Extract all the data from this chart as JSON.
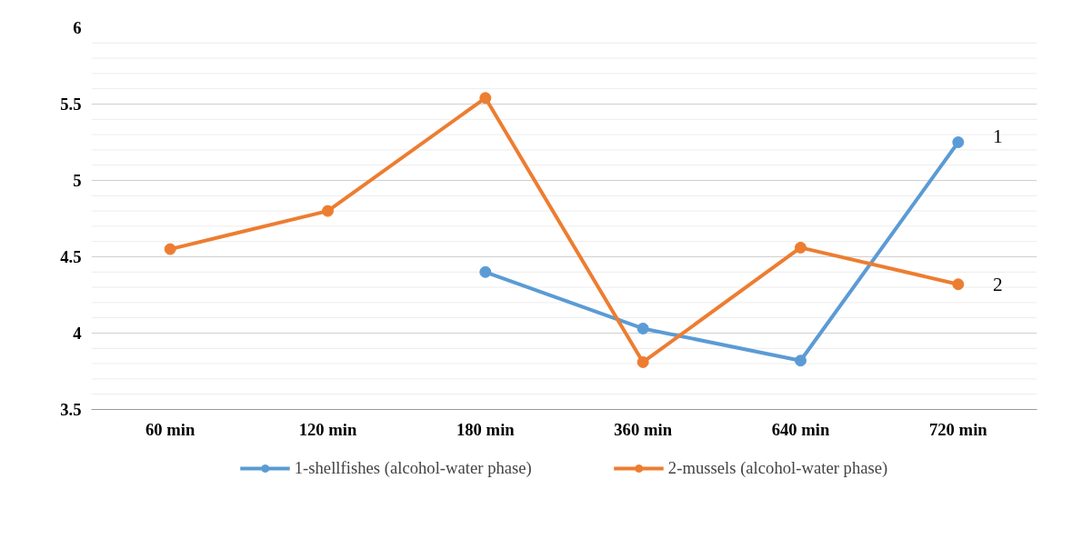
{
  "chart_data": {
    "type": "line",
    "categories": [
      "60 min",
      "120 min",
      "180 min",
      "360 min",
      "640 min",
      "720 min"
    ],
    "series": [
      {
        "name": "1-shellfishes (alcohol-water phase)",
        "color": "#5b9bd5",
        "values": [
          null,
          null,
          4.4,
          4.03,
          3.82,
          5.25
        ]
      },
      {
        "name": "2-mussels (alcohol-water phase)",
        "color": "#ed7d31",
        "values": [
          4.55,
          4.8,
          5.54,
          3.81,
          4.56,
          4.32
        ]
      }
    ],
    "ylim": [
      3.5,
      6
    ],
    "yticks": [
      3.5,
      {
        "value": 3.6,
        "label": null
      },
      {
        "value": 3.7,
        "label": null
      },
      {
        "value": 3.8,
        "label": null
      },
      {
        "value": 3.9,
        "label": null
      },
      4,
      {
        "value": 4.1,
        "label": null
      },
      {
        "value": 4.2,
        "label": null
      },
      {
        "value": 4.3,
        "label": null
      },
      {
        "value": 4.4,
        "label": null
      },
      4.5,
      {
        "value": 4.6,
        "label": null
      },
      {
        "value": 4.7,
        "label": null
      },
      {
        "value": 4.8,
        "label": null
      },
      {
        "value": 4.9,
        "label": null
      },
      5,
      {
        "value": 5.1,
        "label": null
      },
      {
        "value": 5.2,
        "label": null
      },
      {
        "value": 5.3,
        "label": null
      },
      {
        "value": 5.4,
        "label": null
      },
      5.5,
      {
        "value": 5.6,
        "label": null
      },
      {
        "value": 5.7,
        "label": null
      },
      {
        "value": 5.8,
        "label": null
      },
      {
        "value": 5.9,
        "label": null
      },
      6
    ],
    "annotations": [
      {
        "text": "1",
        "x": "720 min",
        "y": 5.25
      },
      {
        "text": "2",
        "x": "720 min",
        "y": 4.32
      }
    ],
    "grid": "y",
    "legend": "bottom",
    "marker": "circle",
    "line_style": "solid"
  }
}
